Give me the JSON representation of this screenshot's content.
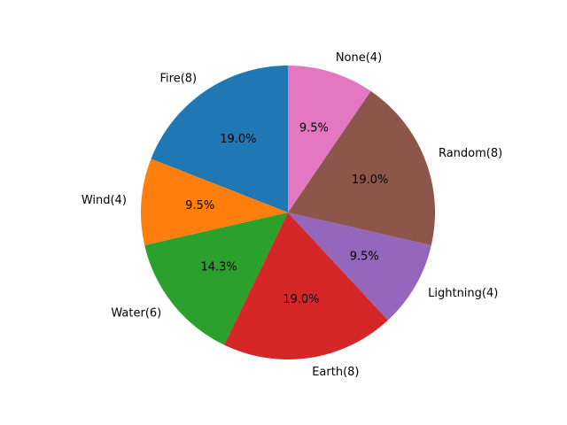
{
  "chart_data": {
    "type": "pie",
    "title": "",
    "start_angle_deg": 90,
    "direction": "counterclockwise",
    "slices": [
      {
        "label": "Fire(8)",
        "value": 8,
        "pct_label": "19.0%",
        "color": "#1f77b4"
      },
      {
        "label": "Wind(4)",
        "value": 4,
        "pct_label": "9.5%",
        "color": "#ff7f0e"
      },
      {
        "label": "Water(6)",
        "value": 6,
        "pct_label": "14.3%",
        "color": "#2ca02c"
      },
      {
        "label": "Earth(8)",
        "value": 8,
        "pct_label": "19.0%",
        "color": "#d62728"
      },
      {
        "label": "Lightning(4)",
        "value": 4,
        "pct_label": "9.5%",
        "color": "#9467bd"
      },
      {
        "label": "Random(8)",
        "value": 8,
        "pct_label": "19.0%",
        "color": "#8c564b"
      },
      {
        "label": "None(4)",
        "value": 4,
        "pct_label": "9.5%",
        "color": "#e377c2"
      }
    ]
  }
}
